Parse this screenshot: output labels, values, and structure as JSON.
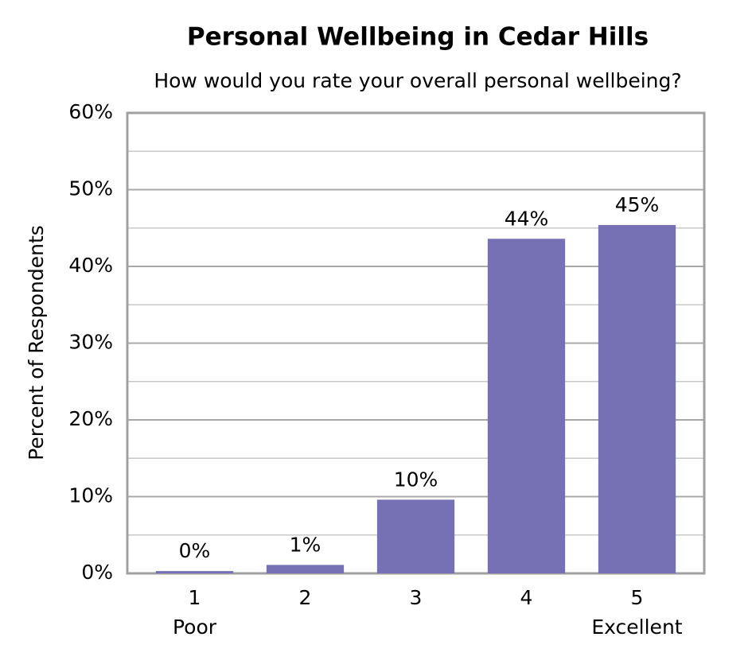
{
  "chart_data": {
    "type": "bar",
    "title": "Personal Wellbeing in Cedar Hills",
    "subtitle": "How would you rate your overall personal wellbeing?",
    "y_label": "Percent of Respondents",
    "categories": [
      "1",
      "2",
      "3",
      "4",
      "5"
    ],
    "category_sublabels": [
      "Poor",
      null,
      null,
      null,
      "Excellent"
    ],
    "values": [
      0.3,
      1.1,
      9.6,
      43.6,
      45.4
    ],
    "value_labels": [
      "0%",
      "1%",
      "10%",
      "44%",
      "45%"
    ],
    "color": "#7671b4",
    "ylim": [
      0,
      60
    ],
    "yticks": [
      {
        "value": 0,
        "label": "0%"
      },
      {
        "value": 10,
        "label": "10%"
      },
      {
        "value": 20,
        "label": "20%"
      },
      {
        "value": 30,
        "label": "30%"
      },
      {
        "value": 40,
        "label": "40%"
      },
      {
        "value": 50,
        "label": "50%"
      },
      {
        "value": 60,
        "label": "60%"
      }
    ],
    "minor_yticks": [
      5,
      15,
      25,
      35,
      45,
      55
    ],
    "grid": true
  }
}
